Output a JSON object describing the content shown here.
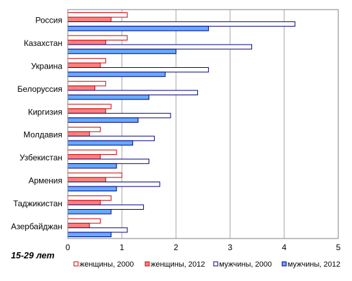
{
  "chart_data": {
    "type": "bar",
    "orientation": "horizontal",
    "subtitle": "15-29 лет",
    "categories": [
      "Россия",
      "Казахстан",
      "Украина",
      "Белоруссия",
      "Киргизия",
      "Молдавия",
      "Узбекистан",
      "Армения",
      "Таджикистан",
      "Азербайджан"
    ],
    "series": [
      {
        "name": "женщины, 2000",
        "values": [
          1.1,
          1.1,
          0.7,
          0.7,
          0.8,
          0.6,
          0.9,
          1.0,
          0.8,
          0.6
        ],
        "fill": "#ffffff",
        "stroke": "#cc0000"
      },
      {
        "name": "женщины, 2012",
        "values": [
          0.8,
          0.7,
          0.6,
          0.5,
          0.7,
          0.4,
          0.6,
          0.7,
          0.6,
          0.4
        ],
        "fill": "#ff8080",
        "stroke": "#cc0000"
      },
      {
        "name": "мужчины, 2000",
        "values": [
          4.2,
          3.4,
          2.6,
          2.4,
          1.9,
          1.6,
          1.5,
          1.7,
          1.4,
          1.1
        ],
        "fill": "#ffffff",
        "stroke": "#000080"
      },
      {
        "name": "мужчины, 2012",
        "values": [
          2.6,
          2.0,
          1.8,
          1.5,
          1.3,
          1.2,
          0.9,
          0.9,
          0.8,
          0.8
        ],
        "fill": "#66aaff",
        "stroke": "#000080"
      }
    ],
    "xlim": [
      0,
      5
    ],
    "xticks": [
      0,
      1,
      2,
      3,
      4,
      5
    ],
    "grid": true,
    "legend": "bottom"
  }
}
